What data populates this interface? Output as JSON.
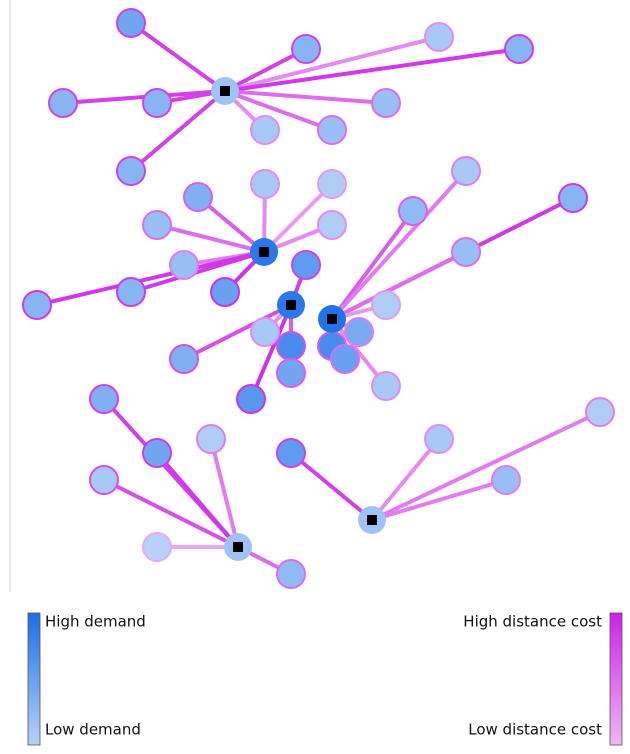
{
  "legend": {
    "demand": {
      "high": "High demand",
      "low": "Low demand"
    },
    "distance_cost": {
      "high": "High distance cost",
      "low": "Low distance cost"
    }
  }
}
